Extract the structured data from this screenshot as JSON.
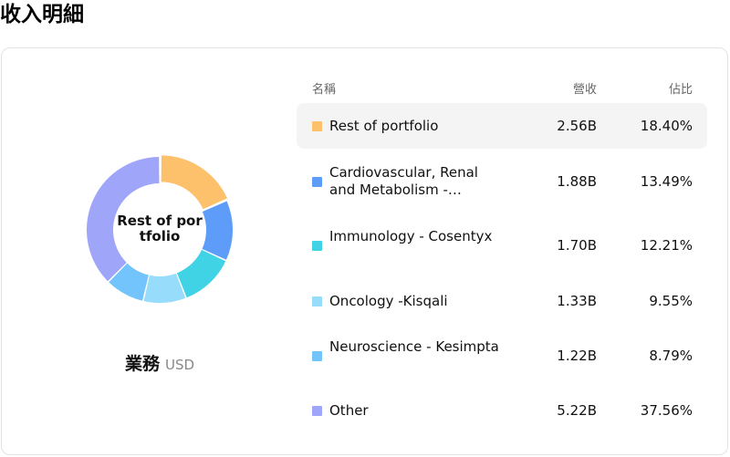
{
  "page_title": "收入明細",
  "table_headers": {
    "name": "名稱",
    "revenue": "營收",
    "share": "佔比"
  },
  "center_label": "Rest of portfolio",
  "caption": {
    "title": "業務",
    "unit": "USD"
  },
  "rows": [
    {
      "name": "Rest of portfolio",
      "revenue": "2.56B",
      "share": "18.40%",
      "color": "#fdc06b"
    },
    {
      "name": "Cardiovascular, Renal and Metabolism -…",
      "revenue": "1.88B",
      "share": "13.49%",
      "color": "#5e9cf9"
    },
    {
      "name": "Immunology - Cosentyx",
      "revenue": "1.70B",
      "share": "12.21%",
      "color": "#40d3e6"
    },
    {
      "name": "Oncology -Kisqali",
      "revenue": "1.33B",
      "share": "9.55%",
      "color": "#98dcfb"
    },
    {
      "name": "Neuroscience - Kesimpta",
      "revenue": "1.22B",
      "share": "8.79%",
      "color": "#73c4fc"
    },
    {
      "name": "Other",
      "revenue": "5.22B",
      "share": "37.56%",
      "color": "#9fa5f9"
    }
  ],
  "chart_data": {
    "type": "pie",
    "donut": true,
    "selected": "Rest of portfolio",
    "categories": [
      "Rest of portfolio",
      "Cardiovascular, Renal and Metabolism -…",
      "Immunology - Cosentyx",
      "Oncology -Kisqali",
      "Neuroscience - Kesimpta",
      "Other"
    ],
    "values": [
      18.4,
      13.49,
      12.21,
      9.55,
      8.79,
      37.56
    ],
    "revenue": [
      2.56,
      1.88,
      1.7,
      1.33,
      1.22,
      5.22
    ],
    "colors": [
      "#fdc06b",
      "#5e9cf9",
      "#40d3e6",
      "#98dcfb",
      "#73c4fc",
      "#9fa5f9"
    ]
  }
}
